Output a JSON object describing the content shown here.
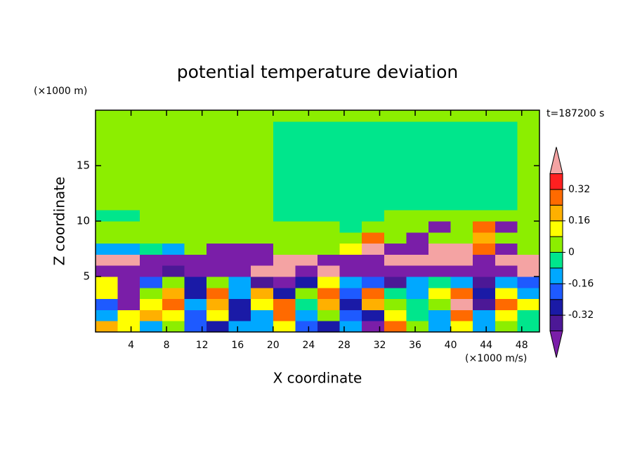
{
  "chart_data": {
    "type": "contour",
    "title": "potential temperature deviation",
    "y_unit_label": "(×1000 m)",
    "x_unit_label": "(×1000 m/s)",
    "time_label": "t=187200 s",
    "xlabel": "X coordinate",
    "ylabel": "Z coordinate",
    "xlim": [
      0,
      50
    ],
    "ylim": [
      0,
      20
    ],
    "xticks": [
      4,
      8,
      12,
      16,
      20,
      24,
      28,
      32,
      36,
      40,
      44,
      48
    ],
    "yticks": [
      5,
      10,
      15
    ],
    "field": {
      "x": [
        1.25,
        3.75,
        6.25,
        8.75,
        11.25,
        13.75,
        16.25,
        18.75,
        21.25,
        23.75,
        26.25,
        28.75,
        31.25,
        33.75,
        36.25,
        38.75,
        41.25,
        43.75,
        46.25,
        48.75
      ],
      "z": [
        0.5,
        1.5,
        2.5,
        3.5,
        4.5,
        5.5,
        6.5,
        7.5,
        8.5,
        9.5,
        10.5,
        11.5,
        12.5,
        13.5,
        14.5,
        15.5,
        16.5,
        17.5,
        18.5,
        19.5
      ],
      "values": [
        [
          0.2,
          0.1,
          -0.1,
          0.05,
          -0.2,
          -0.3,
          -0.12,
          -0.1,
          0.1,
          -0.2,
          -0.3,
          -0.1,
          -0.45,
          0.3,
          0.05,
          -0.1,
          0.1,
          -0.15,
          0.05,
          -0.05
        ],
        [
          -0.1,
          0.1,
          0.2,
          0.12,
          -0.2,
          0.1,
          -0.28,
          -0.12,
          0.25,
          -0.12,
          0.05,
          -0.2,
          -0.3,
          0.1,
          -0.05,
          -0.1,
          0.25,
          -0.12,
          0.1,
          -0.05
        ],
        [
          -0.2,
          -0.45,
          0.1,
          0.3,
          -0.12,
          0.2,
          -0.28,
          0.12,
          0.28,
          -0.05,
          0.2,
          -0.3,
          0.2,
          0.05,
          -0.08,
          0.05,
          0.45,
          -0.36,
          0.25,
          0.1
        ],
        [
          0.12,
          -0.45,
          0.05,
          0.2,
          -0.28,
          0.3,
          -0.1,
          0.2,
          -0.3,
          0.05,
          0.28,
          -0.2,
          0.3,
          -0.08,
          -0.1,
          0.1,
          0.3,
          -0.3,
          0.1,
          -0.1
        ],
        [
          0.1,
          -0.45,
          -0.2,
          0.05,
          -0.3,
          0.05,
          -0.12,
          -0.36,
          -0.45,
          -0.28,
          0.1,
          -0.12,
          -0.2,
          -0.36,
          -0.1,
          -0.05,
          -0.12,
          -0.36,
          -0.12,
          -0.2
        ],
        [
          -0.45,
          -0.45,
          -0.45,
          -0.36,
          -0.45,
          -0.45,
          -0.45,
          0.5,
          0.5,
          -0.45,
          0.5,
          -0.45,
          -0.45,
          -0.45,
          -0.45,
          -0.45,
          -0.45,
          -0.45,
          -0.45,
          0.5
        ],
        [
          0.5,
          0.5,
          -0.45,
          -0.45,
          -0.45,
          -0.45,
          -0.45,
          -0.45,
          0.5,
          0.5,
          -0.45,
          -0.45,
          -0.45,
          0.5,
          0.5,
          0.5,
          0.5,
          -0.45,
          0.5,
          0.5
        ],
        [
          -0.12,
          -0.1,
          -0.04,
          -0.1,
          0.04,
          -0.45,
          -0.45,
          -0.45,
          0.04,
          0.04,
          0.04,
          0.12,
          0.5,
          -0.45,
          -0.45,
          0.5,
          0.5,
          0.3,
          -0.45,
          0.04
        ],
        [
          0.04,
          0.04,
          0.04,
          0.04,
          0.04,
          0.04,
          0.04,
          0.04,
          0.04,
          0.04,
          0.04,
          0.04,
          0.3,
          0.04,
          -0.45,
          0.04,
          0.04,
          0.2,
          0.04,
          0.04
        ],
        [
          0.04,
          0.04,
          0.04,
          0.04,
          0.04,
          0.04,
          0.04,
          0.04,
          0.04,
          0.04,
          0.04,
          -0.04,
          0.04,
          0.04,
          0.04,
          -0.45,
          0.04,
          0.3,
          -0.45,
          0.04
        ],
        [
          -0.04,
          -0.04,
          0.04,
          0.04,
          0.04,
          0.04,
          0.04,
          0.04,
          -0.04,
          -0.04,
          -0.04,
          -0.04,
          -0.04,
          0.04,
          0.04,
          0.04,
          0.04,
          0.04,
          0.04,
          0.04
        ],
        [
          0.04,
          0.04,
          0.04,
          0.04,
          0.04,
          0.04,
          0.04,
          0.04,
          -0.04,
          -0.04,
          -0.04,
          -0.04,
          -0.04,
          -0.04,
          -0.04,
          -0.04,
          -0.04,
          -0.04,
          -0.04,
          0.04
        ],
        [
          0.04,
          0.04,
          0.04,
          0.04,
          0.04,
          0.04,
          0.04,
          0.04,
          -0.04,
          -0.04,
          -0.04,
          -0.04,
          -0.04,
          -0.04,
          -0.04,
          -0.04,
          -0.04,
          -0.04,
          -0.04,
          0.04
        ],
        [
          0.04,
          0.04,
          0.04,
          0.04,
          0.04,
          0.04,
          0.04,
          0.04,
          -0.04,
          -0.04,
          -0.04,
          -0.04,
          -0.04,
          -0.04,
          -0.04,
          -0.04,
          -0.04,
          -0.04,
          -0.04,
          0.04
        ],
        [
          0.04,
          0.04,
          0.04,
          0.04,
          0.04,
          0.04,
          0.04,
          0.04,
          -0.04,
          -0.04,
          -0.04,
          -0.04,
          -0.04,
          -0.04,
          -0.04,
          -0.04,
          -0.04,
          -0.04,
          -0.04,
          0.04
        ],
        [
          0.04,
          0.04,
          0.04,
          0.04,
          0.04,
          0.04,
          0.04,
          0.04,
          -0.04,
          -0.04,
          -0.04,
          -0.04,
          -0.04,
          -0.04,
          -0.04,
          -0.04,
          -0.04,
          -0.04,
          -0.04,
          0.04
        ],
        [
          0.04,
          0.04,
          0.04,
          0.04,
          0.04,
          0.04,
          0.04,
          0.04,
          -0.04,
          -0.04,
          -0.04,
          -0.04,
          -0.04,
          -0.04,
          -0.04,
          -0.04,
          -0.04,
          -0.04,
          -0.04,
          0.04
        ],
        [
          0.04,
          0.04,
          0.04,
          0.04,
          0.04,
          0.04,
          0.04,
          0.04,
          -0.04,
          -0.04,
          -0.04,
          -0.04,
          -0.04,
          -0.04,
          -0.04,
          -0.04,
          -0.04,
          -0.04,
          -0.04,
          0.04
        ],
        [
          0.04,
          0.04,
          0.04,
          0.04,
          0.04,
          0.04,
          0.04,
          0.04,
          -0.04,
          -0.04,
          -0.04,
          -0.04,
          -0.04,
          -0.04,
          -0.04,
          -0.04,
          -0.04,
          -0.04,
          -0.04,
          0.04
        ],
        [
          0.04,
          0.04,
          0.04,
          0.04,
          0.04,
          0.04,
          0.04,
          0.04,
          0.04,
          0.04,
          0.04,
          0.04,
          0.04,
          0.04,
          0.04,
          0.04,
          0.04,
          0.04,
          0.04,
          0.04
        ]
      ]
    },
    "colorbar": {
      "levels": [
        -0.4,
        -0.32,
        -0.24,
        -0.16,
        -0.08,
        0,
        0.08,
        0.16,
        0.24,
        0.32,
        0.4
      ],
      "colors": [
        "#7a1ea8",
        "#4c1896",
        "#1a1aa6",
        "#1e5aff",
        "#00a8ff",
        "#00e68c",
        "#8cee00",
        "#ffff00",
        "#ffb000",
        "#ff6a00",
        "#ff2020",
        "#f4a3a3"
      ],
      "ticks": [
        0.32,
        0.16,
        0,
        -0.16,
        -0.32
      ]
    }
  }
}
